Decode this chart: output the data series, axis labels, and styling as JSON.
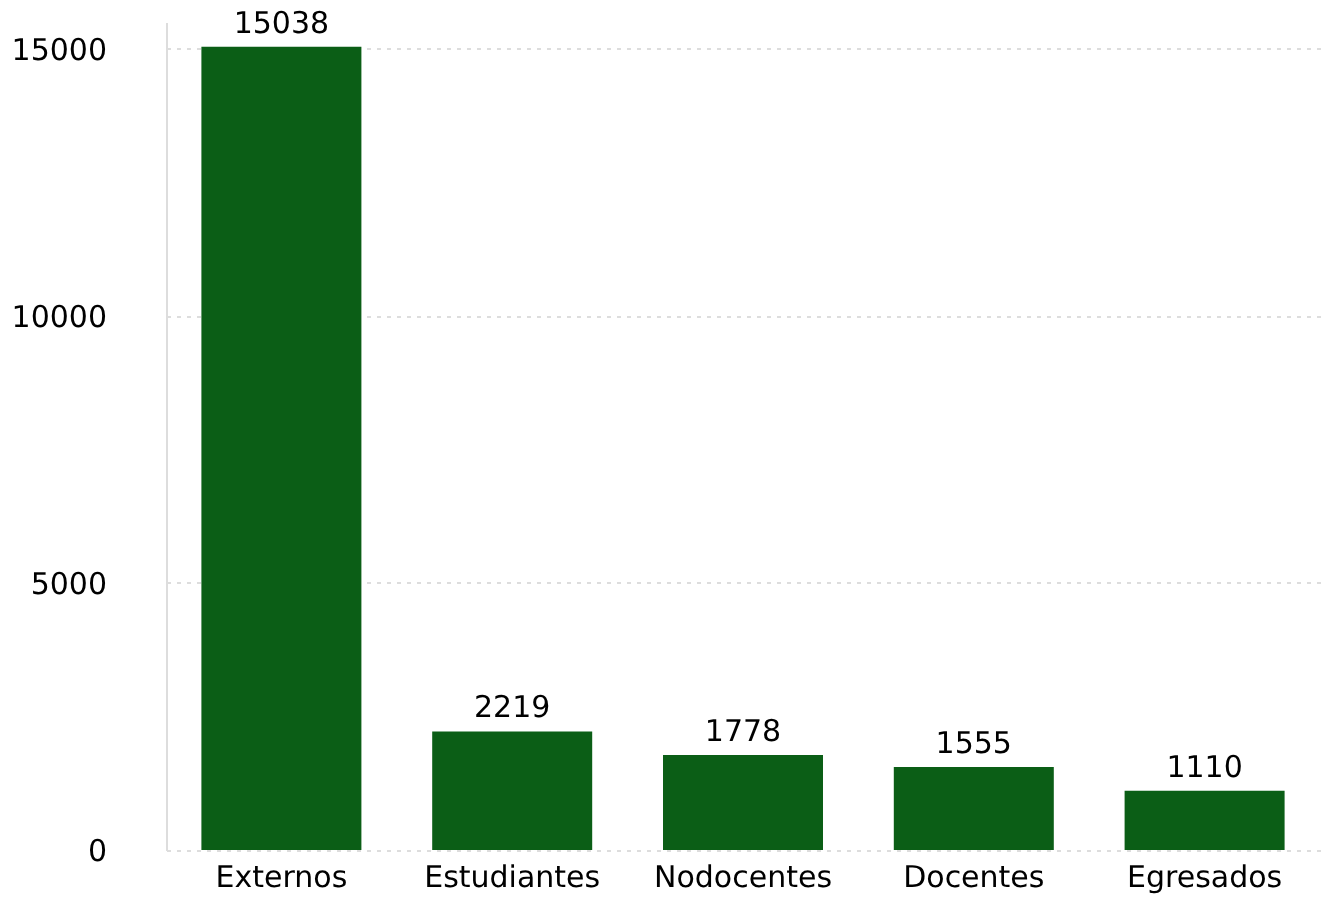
{
  "chart_data": {
    "type": "bar",
    "categories": [
      "Externos",
      "Estudiantes",
      "Nodocentes",
      "Docentes",
      "Egresados"
    ],
    "values": [
      15038,
      2219,
      1778,
      1555,
      1110
    ],
    "color": "#0b5e16",
    "ylim": [
      0,
      15500
    ],
    "yticks": [
      0,
      5000,
      10000,
      15000
    ],
    "grid": "y",
    "data_labels": true
  }
}
